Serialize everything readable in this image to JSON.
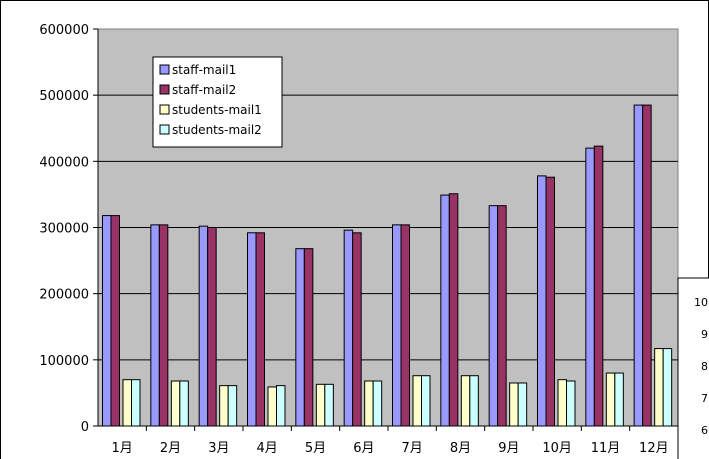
{
  "chart_data": {
    "type": "bar",
    "title": "",
    "xlabel": "",
    "ylabel": "",
    "categories": [
      "1月",
      "2月",
      "3月",
      "4月",
      "5月",
      "6月",
      "7月",
      "8月",
      "9月",
      "10月",
      "11月",
      "12月"
    ],
    "series": [
      {
        "name": "staff-mail1",
        "color": "#9999ff",
        "values": [
          318000,
          304000,
          302000,
          292000,
          268000,
          296000,
          304000,
          349000,
          333000,
          378000,
          420000,
          485000
        ]
      },
      {
        "name": "staff-mail2",
        "color": "#993366",
        "values": [
          318000,
          304000,
          300000,
          292000,
          268000,
          292000,
          304000,
          351000,
          333000,
          376000,
          423000,
          485000
        ]
      },
      {
        "name": "students-mail1",
        "color": "#ffffcc",
        "values": [
          70000,
          68000,
          61000,
          59000,
          63000,
          68000,
          76000,
          76000,
          65000,
          70000,
          80000,
          117000
        ]
      },
      {
        "name": "students-mail2",
        "color": "#ccffff",
        "values": [
          70000,
          68000,
          61000,
          61000,
          63000,
          68000,
          76000,
          76000,
          65000,
          68000,
          80000,
          117000
        ]
      }
    ],
    "ylim": [
      0,
      600000
    ],
    "yticks": [
      "0",
      "100000",
      "200000",
      "300000",
      "400000",
      "500000",
      "600000"
    ],
    "grid": true,
    "legend_position": "top-left",
    "plot_background": "#c0c0c0"
  },
  "overlay_chart": {
    "tick_labels": [
      "10",
      "9",
      "8",
      "7",
      "6"
    ]
  }
}
